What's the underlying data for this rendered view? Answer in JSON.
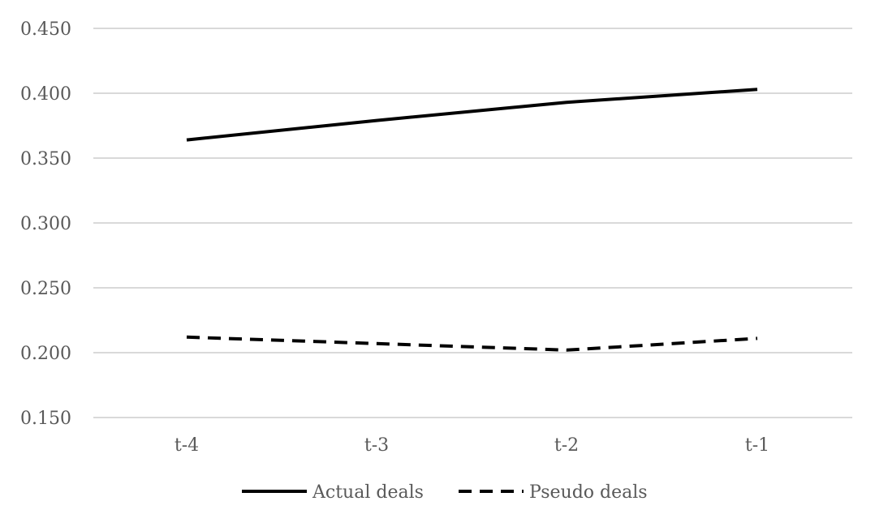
{
  "chart_data": {
    "type": "line",
    "categories": [
      "t-4",
      "t-3",
      "t-2",
      "t-1"
    ],
    "series": [
      {
        "name": "Actual deals",
        "values": [
          0.364,
          0.379,
          0.393,
          0.403
        ],
        "color": "#000000",
        "style": "solid"
      },
      {
        "name": "Pseudo deals",
        "values": [
          0.212,
          0.207,
          0.202,
          0.211
        ],
        "color": "#000000",
        "style": "dashed"
      }
    ],
    "yticks": [
      "0.450",
      "0.400",
      "0.350",
      "0.300",
      "0.250",
      "0.200",
      "0.150"
    ],
    "ylim": [
      0.15,
      0.45
    ],
    "grid": true,
    "legend_position": "bottom"
  }
}
